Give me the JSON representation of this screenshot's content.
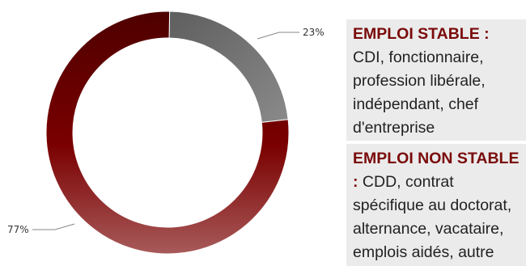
{
  "chart_data": {
    "type": "pie",
    "variant": "donut",
    "slices": [
      {
        "label": "23%",
        "value": 23,
        "color": "#808080"
      },
      {
        "label": "77%",
        "value": 77,
        "color": "#7a0000"
      }
    ]
  },
  "legend": {
    "stable": {
      "title": "EMPLOI STABLE :",
      "text": "CDI, fonctionnaire, profession libérale, indépendant, chef d'entreprise"
    },
    "unstable": {
      "title": "EMPLOI NON STABLE :",
      "text": "CDD, contrat spécifique au doctorat, alternance, vacataire, emplois aidés, autre"
    }
  }
}
